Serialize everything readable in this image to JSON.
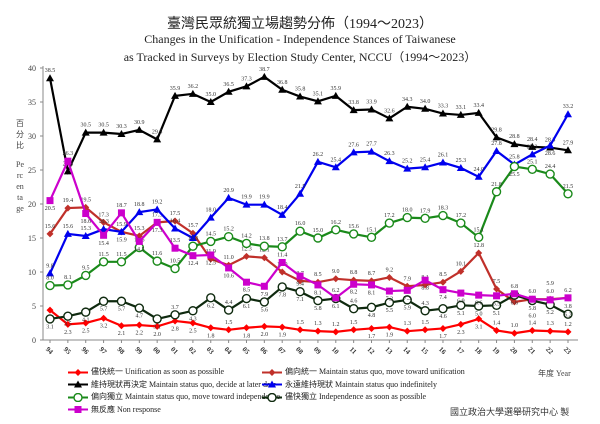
{
  "title_zh": "臺灣民眾統獨立場趨勢分佈（1994～2023）",
  "title_en_1": "Changes in the Unification - Independence Stances of Taiwanese",
  "title_en_2": "as Tracked in Surveys by Election Study Center, NCCU（1994～2023）",
  "credit": "國立政治大學選舉研究中心 製",
  "chart_data": {
    "type": "line",
    "title": "臺灣民眾統獨立場趨勢分佈（1994～2023）",
    "ylabel_zh": "百分比",
    "ylabel": "Percentage",
    "xlabel": "年度 Year",
    "ylim": [
      0,
      40
    ],
    "yticks": [
      "0",
      "5",
      "10",
      "15",
      "20",
      "25",
      "30",
      "35",
      "40"
    ],
    "grid": false,
    "legend_position": "bottom",
    "categories": [
      "94",
      "95",
      "96",
      "97",
      "98",
      "99",
      "00",
      "01",
      "02",
      "03",
      "04",
      "05",
      "06",
      "07",
      "08",
      "09",
      "10",
      "11",
      "12",
      "13",
      "14",
      "15",
      "16",
      "17",
      "18",
      "19",
      "20",
      "21",
      "22",
      "23"
    ],
    "series": [
      {
        "name": "儘快統一 Unification as soon as possible",
        "color": "#ff0000",
        "marker": "diamond",
        "values": [
          4.4,
          2.3,
          2.5,
          3.2,
          2.1,
          2.2,
          2.0,
          2.8,
          2.5,
          1.8,
          1.5,
          1.8,
          2.0,
          1.9,
          1.5,
          1.3,
          1.2,
          1.5,
          1.7,
          1.9,
          1.3,
          1.5,
          1.7,
          2.3,
          3.1,
          1.4,
          1.0,
          1.4,
          1.3,
          1.2
        ]
      },
      {
        "name": "偏向統一 Maintain status quo, move toward unification",
        "color": "#c0302a",
        "marker": "diamond",
        "values": [
          15.6,
          19.4,
          19.5,
          17.3,
          15.9,
          15.3,
          17.3,
          17.5,
          15.7,
          11.9,
          11.0,
          12.3,
          12.1,
          10.0,
          8.7,
          8.5,
          9.0,
          8.8,
          8.7,
          9.2,
          7.9,
          8.1,
          8.5,
          10.1,
          12.8,
          7.5,
          5.6,
          6.0,
          6.0,
          6.2
        ]
      },
      {
        "name": "維持現狀再決定 Maintain status quo, decide at later date",
        "color": "#000000",
        "marker": "triangle",
        "values": [
          38.5,
          24.8,
          30.5,
          30.5,
          30.3,
          30.9,
          29.5,
          35.9,
          36.2,
          35.0,
          36.5,
          37.3,
          38.7,
          36.8,
          35.8,
          35.1,
          35.9,
          33.8,
          33.9,
          32.6,
          34.3,
          34.0,
          33.3,
          33.1,
          33.4,
          29.8,
          28.8,
          28.4,
          28.3,
          27.9
        ]
      },
      {
        "name": "永遠維持現狀 Maintain status quo indefinitely",
        "color": "#0000ee",
        "marker": "triangle",
        "values": [
          9.8,
          15.6,
          15.3,
          16.3,
          15.9,
          18.8,
          19.2,
          16.4,
          15.0,
          18.0,
          20.9,
          19.9,
          19.9,
          18.4,
          21.5,
          26.2,
          25.4,
          27.6,
          27.7,
          26.3,
          25.2,
          25.4,
          26.1,
          25.3,
          24.0,
          27.8,
          25.8,
          27.3,
          28.6,
          33.2
        ]
      },
      {
        "name": "偏向獨立 Maintain status quo, move toward independence",
        "color": "#1a8a1a",
        "marker": "circle",
        "values": [
          8.0,
          8.1,
          9.5,
          11.5,
          11.5,
          13.6,
          11.6,
          10.5,
          13.8,
          14.5,
          15.2,
          14.2,
          13.8,
          13.7,
          16.0,
          15.0,
          16.2,
          15.6,
          15.1,
          17.2,
          18.0,
          17.9,
          18.3,
          17.2,
          15.1,
          21.8,
          25.5,
          25.1,
          24.4,
          21.5
        ]
      },
      {
        "name": "儘快獨立 Independence as soon as possible",
        "color": "#0f2a0f",
        "marker": "circle",
        "values": [
          3.1,
          3.5,
          4.1,
          5.7,
          5.7,
          4.7,
          3.1,
          3.7,
          4.3,
          6.2,
          4.4,
          6.1,
          5.6,
          7.8,
          7.1,
          5.8,
          6.1,
          4.6,
          4.8,
          5.5,
          5.9,
          4.3,
          4.6,
          5.1,
          5.0,
          5.1,
          6.6,
          5.8,
          5.2,
          3.8
        ]
      },
      {
        "name": "無反應 Non response",
        "color": "#cc00cc",
        "marker": "square",
        "values": [
          20.5,
          26.3,
          18.6,
          15.4,
          18.7,
          14.5,
          17.3,
          13.5,
          12.4,
          12.5,
          10.6,
          8.5,
          7.9,
          11.4,
          9.4,
          8.1,
          6.2,
          8.2,
          8.1,
          7.2,
          7.3,
          8.8,
          7.4,
          6.9,
          6.6,
          6.5,
          6.8,
          6.0,
          5.9,
          6.2
        ]
      }
    ]
  }
}
